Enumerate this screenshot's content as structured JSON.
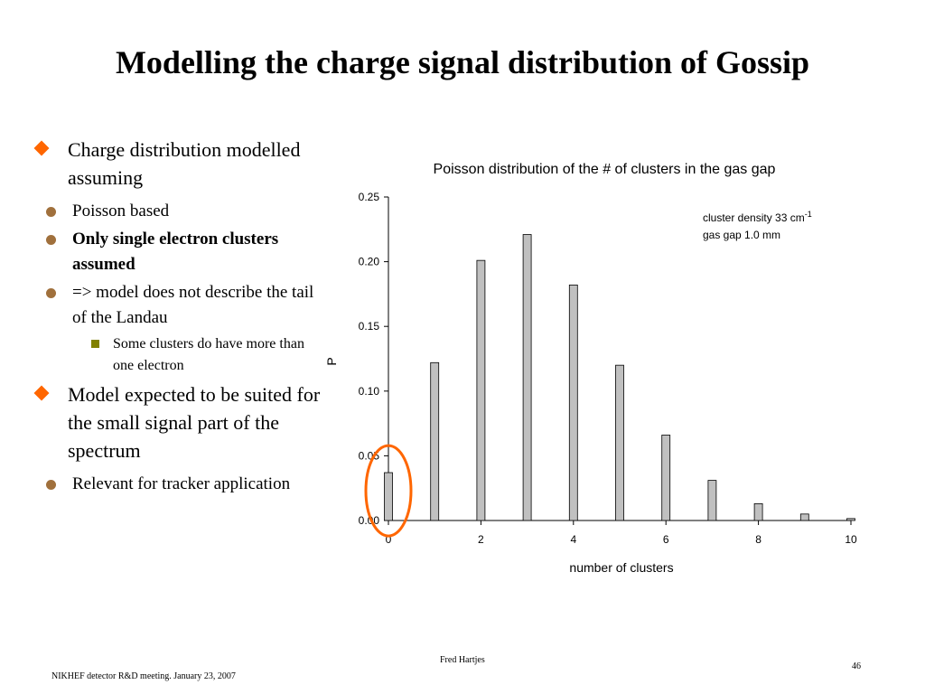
{
  "slide": {
    "title": "Modelling the charge signal distribution of Gossip"
  },
  "bullets": [
    {
      "text": "Charge distribution modelled assuming",
      "sub": [
        {
          "text": "Poisson based",
          "bold": false
        },
        {
          "text": "Only single electron clusters assumed",
          "bold": true
        },
        {
          "text": "=> model does not describe the tail of the Landau",
          "bold": false,
          "sub": [
            {
              "text": "Some clusters do have more than one electron"
            }
          ]
        }
      ]
    },
    {
      "text": "Model expected to be suited for the small signal part of the spectrum",
      "sub": [
        {
          "text": "Relevant for tracker application",
          "bold": false
        }
      ]
    }
  ],
  "chart_data": {
    "type": "bar",
    "title": "Poisson distribution of the # of clusters in the gas gap",
    "xlabel": "number of clusters",
    "ylabel": "P",
    "x": [
      0,
      1,
      2,
      3,
      4,
      5,
      6,
      7,
      8,
      9,
      10
    ],
    "values": [
      0.037,
      0.122,
      0.201,
      0.221,
      0.182,
      0.12,
      0.066,
      0.031,
      0.013,
      0.005,
      0.0015
    ],
    "xlim": [
      0,
      10
    ],
    "ylim": [
      0,
      0.25
    ],
    "xticks": [
      "0",
      "2",
      "4",
      "6",
      "8",
      "10"
    ],
    "yticks": [
      "0.00",
      "0.05",
      "0.10",
      "0.15",
      "0.20",
      "0.25"
    ],
    "annotation": {
      "line1": "cluster density 33 cm",
      "line1_sup": "-1",
      "line2": "gas gap 1.0 mm"
    },
    "highlight_x": 0,
    "colors": {
      "bar": "#c0c0c0",
      "bar_edge": "#000000",
      "highlight": "#ff6600"
    }
  },
  "footer": {
    "author": "Fred Hartjes",
    "event": "NIKHEF detector R&D meeting. January 23, 2007",
    "page": "46"
  }
}
